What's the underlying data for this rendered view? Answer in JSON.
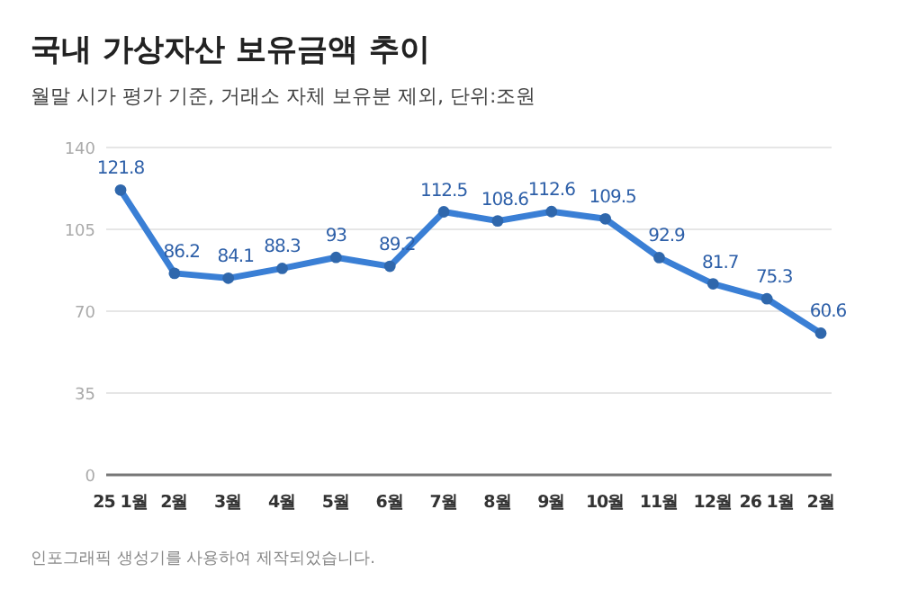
{
  "chart_data": {
    "type": "line",
    "title": "국내 가상자산 보유금액 추이",
    "subtitle": "월말 시가 평가 기준, 거래소 자체 보유분 제외, 단위:조원",
    "categories": [
      "25 1월",
      "2월",
      "3월",
      "4월",
      "5월",
      "6월",
      "7월",
      "8월",
      "9월",
      "10월",
      "11월",
      "12월",
      "26 1월",
      "2월"
    ],
    "series": [
      {
        "color": "#3a7fd5",
        "values": [
          121.8,
          86.2,
          84.1,
          88.3,
          93,
          89.2,
          112.5,
          108.6,
          112.6,
          109.5,
          92.9,
          81.7,
          75.3,
          60.6
        ]
      }
    ],
    "ylim": [
      0,
      140
    ],
    "yticks": [
      0,
      35,
      70,
      105,
      140
    ],
    "grid": "y",
    "marker": "circle",
    "line_style": "solid",
    "data_labels": true,
    "annotations": [
      "인포그래픽 생성기를 사용하여 제작되었습니다."
    ]
  }
}
